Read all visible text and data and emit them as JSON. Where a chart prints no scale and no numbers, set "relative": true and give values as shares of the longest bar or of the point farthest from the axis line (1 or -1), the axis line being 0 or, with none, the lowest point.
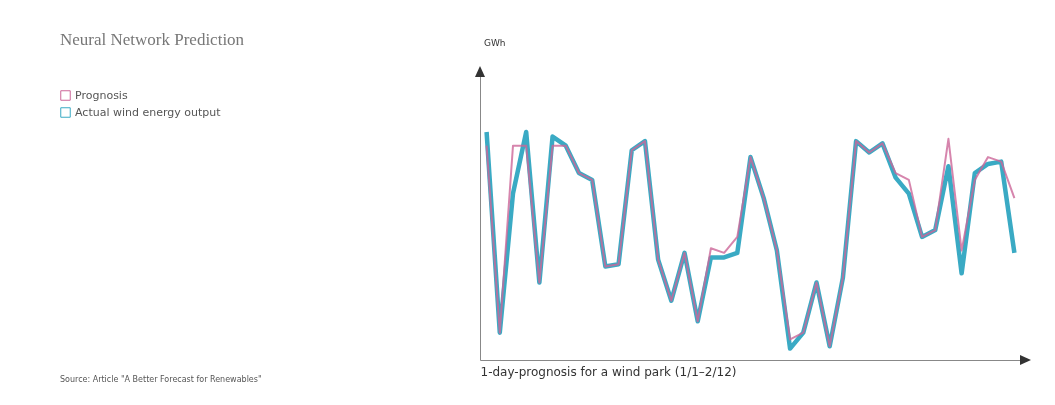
{
  "chart_data": {
    "type": "line",
    "title": "Neural Network Prediction",
    "xlabel": "1-day-prognosis for a wind park (1/1–2/12)",
    "relative": true,
    "tick_labels": false,
    "legend": "top left",
    "annotations": [
      "GWh",
      "Source: Article \"A Better Forecast for Renewables\""
    ],
    "categories": [
      null,
      null,
      null,
      null,
      null,
      null,
      null,
      null,
      null,
      null,
      null,
      null,
      null,
      null,
      null,
      null,
      null,
      null,
      null,
      null,
      null,
      null,
      null,
      null,
      null,
      null,
      null,
      null,
      null,
      null,
      null,
      null,
      null,
      null,
      null,
      null,
      null,
      null,
      null,
      null,
      null
    ],
    "series": [
      {
        "name": "Prognosis",
        "color": "#cc6699",
        "values": [
          0.94,
          0.12,
          0.94,
          0.94,
          0.34,
          0.94,
          0.94,
          0.82,
          0.79,
          0.41,
          0.42,
          0.92,
          0.96,
          0.44,
          0.26,
          0.47,
          0.17,
          0.49,
          0.47,
          0.54,
          0.89,
          0.71,
          0.48,
          0.09,
          0.12,
          0.34,
          0.06,
          0.36,
          0.96,
          0.91,
          0.95,
          0.82,
          0.79,
          0.54,
          0.57,
          0.97,
          0.48,
          0.79,
          0.89,
          0.87,
          0.71
        ]
      },
      {
        "name": "Actual wind energy output",
        "color": "#3aaac4",
        "values": [
          1.0,
          0.12,
          0.73,
          1.0,
          0.34,
          0.98,
          0.94,
          0.82,
          0.79,
          0.41,
          0.42,
          0.92,
          0.96,
          0.44,
          0.26,
          0.47,
          0.17,
          0.45,
          0.45,
          0.47,
          0.89,
          0.71,
          0.48,
          0.05,
          0.12,
          0.34,
          0.06,
          0.36,
          0.96,
          0.91,
          0.95,
          0.8,
          0.73,
          0.54,
          0.57,
          0.85,
          0.38,
          0.82,
          0.86,
          0.87,
          0.47
        ]
      }
    ]
  }
}
